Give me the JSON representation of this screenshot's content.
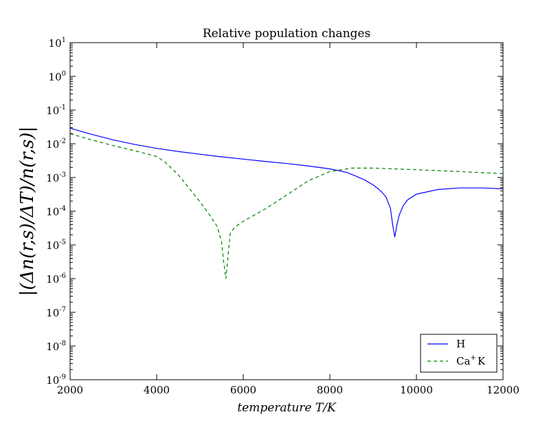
{
  "chart_data": {
    "type": "line",
    "title": "Relative population changes",
    "xlabel": "temperature T/K",
    "ylabel": "|(Δn(r,s)/ΔT)/n(r,s)|",
    "xlim": [
      2000,
      12000
    ],
    "ylim": [
      1e-09,
      10
    ],
    "yscale": "log",
    "grid": false,
    "legend_position": "bottom-right",
    "x_ticks": [
      "2000",
      "4000",
      "6000",
      "8000",
      "10000",
      "12000"
    ],
    "y_ticks": [
      {
        "base": "10",
        "exp": "1"
      },
      {
        "base": "10",
        "exp": "0"
      },
      {
        "base": "10",
        "exp": "-1"
      },
      {
        "base": "10",
        "exp": "-2"
      },
      {
        "base": "10",
        "exp": "-3"
      },
      {
        "base": "10",
        "exp": "-4"
      },
      {
        "base": "10",
        "exp": "-5"
      },
      {
        "base": "10",
        "exp": "-6"
      },
      {
        "base": "10",
        "exp": "-7"
      },
      {
        "base": "10",
        "exp": "-8"
      },
      {
        "base": "10",
        "exp": "-9"
      }
    ],
    "series": [
      {
        "name": "H",
        "color": "#0000ff",
        "style": "solid",
        "x": [
          2000,
          2500,
          3000,
          3500,
          4000,
          4500,
          5000,
          5500,
          6000,
          6500,
          7000,
          7500,
          8000,
          8200,
          8400,
          8600,
          8800,
          9000,
          9100,
          9200,
          9300,
          9400,
          9450,
          9500,
          9550,
          9600,
          9700,
          9800,
          10000,
          10500,
          11000,
          11500,
          12000
        ],
        "y": [
          0.029,
          0.019,
          0.013,
          0.0095,
          0.0073,
          0.0059,
          0.0049,
          0.0041,
          0.0035,
          0.003,
          0.0026,
          0.0022,
          0.0018,
          0.0016,
          0.0014,
          0.0011,
          0.00085,
          0.0006,
          0.00048,
          0.00037,
          0.00026,
          0.00012,
          4e-05,
          1.7e-05,
          4e-05,
          7.5e-05,
          0.00015,
          0.00022,
          0.00032,
          0.00044,
          0.00049,
          0.00049,
          0.00046
        ]
      },
      {
        "name": "Ca+K",
        "color": "#008000",
        "style": "dashed",
        "x": [
          2000,
          2500,
          3000,
          3500,
          4000,
          4200,
          4500,
          4800,
          5000,
          5200,
          5400,
          5500,
          5550,
          5600,
          5650,
          5700,
          5800,
          6000,
          6500,
          7000,
          7500,
          8000,
          8500,
          9000,
          10000,
          11000,
          12000
        ],
        "y": [
          0.02,
          0.013,
          0.0088,
          0.0062,
          0.0042,
          0.0028,
          0.0012,
          0.0004,
          0.00019,
          8.5e-05,
          3.5e-05,
          1.2e-05,
          3e-06,
          1e-06,
          5e-06,
          2.2e-05,
          3.3e-05,
          5e-05,
          0.000115,
          0.0003,
          0.0008,
          0.0015,
          0.0019,
          0.0019,
          0.0017,
          0.0015,
          0.0013
        ]
      }
    ],
    "legend": [
      {
        "label": "H",
        "base": "",
        "sup": "",
        "tail": ""
      },
      {
        "label": "",
        "base": "Ca",
        "sup": "+",
        "tail": "K"
      }
    ]
  }
}
